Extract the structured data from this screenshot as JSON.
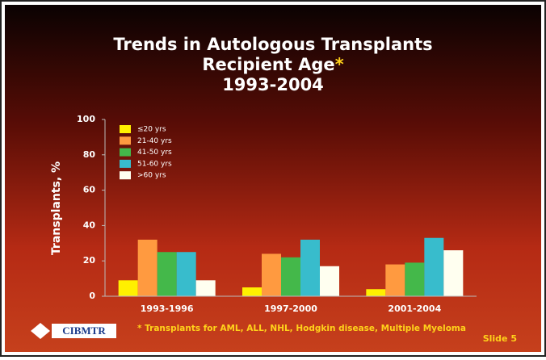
{
  "chart_data": {
    "type": "bar",
    "title_lines": [
      "Trends in Autologous Transplants",
      "Recipient Age",
      "1993-2004"
    ],
    "title_marker": "*",
    "y_label": "Transplants, %",
    "categories": [
      "1993-1996",
      "1997-2000",
      "2001-2004"
    ],
    "series": [
      {
        "name": "≤20 yrs",
        "color": "#fff000",
        "values": [
          9,
          5,
          4
        ]
      },
      {
        "name": "21-40 yrs",
        "color": "#ff9a40",
        "values": [
          32,
          24,
          18
        ]
      },
      {
        "name": "41-50 yrs",
        "color": "#44b84a",
        "values": [
          25,
          22,
          19
        ]
      },
      {
        "name": "51-60 yrs",
        "color": "#38bccc",
        "values": [
          25,
          32,
          33
        ]
      },
      {
        "name": ">60 yrs",
        "color": "#fffff0",
        "values": [
          9,
          17,
          26
        ]
      }
    ],
    "ylim": [
      0,
      100
    ],
    "yticks": [
      0,
      20,
      40,
      60,
      80,
      100
    ],
    "legend": "top-left",
    "footnote": "* Transplants for AML, ALL, NHL, Hodgkin disease, Multiple Myeloma",
    "logo": "CIBMTR",
    "slide": "Slide 5"
  }
}
